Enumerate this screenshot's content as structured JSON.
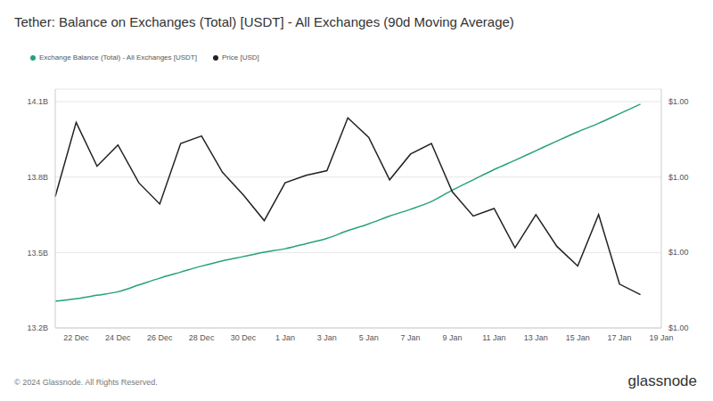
{
  "chart_data": {
    "type": "line",
    "title": "Tether: Balance on Exchanges (Total) [USDT] - All Exchanges (90d Moving Average)",
    "categories": [
      null,
      "22 Dec",
      null,
      "24 Dec",
      null,
      "26 Dec",
      null,
      "28 Dec",
      null,
      "30 Dec",
      null,
      "1 Jan",
      null,
      "3 Jan",
      null,
      "5 Jan",
      null,
      "7 Jan",
      null,
      "9 Jan",
      null,
      "11 Jan",
      null,
      "13 Jan",
      null,
      "15 Jan",
      null,
      "17 Jan",
      null,
      "19 Jan"
    ],
    "series": [
      {
        "name": "Exchange Balance (Total) - All Exchanges [USDT]",
        "color": "#26a17b",
        "values": [
          13.306,
          13.316,
          13.33,
          13.344,
          13.371,
          13.398,
          13.422,
          13.446,
          13.467,
          13.484,
          13.501,
          13.515,
          13.535,
          13.556,
          13.587,
          13.614,
          13.645,
          13.672,
          13.703,
          13.748,
          13.789,
          13.83,
          13.867,
          13.905,
          13.943,
          13.98,
          14.014,
          14.052,
          14.09,
          null
        ]
      },
      {
        "name": "Price [USD]",
        "color": "#222222",
        "axis": "y2",
        "values": [
          0.99937,
          0.99986,
          0.99957,
          0.99971,
          0.99946,
          0.99932,
          0.99972,
          0.99977,
          0.99953,
          0.99938,
          0.99921,
          0.99946,
          0.99951,
          0.99954,
          0.99989,
          0.99976,
          0.99948,
          0.99965,
          0.99972,
          0.9994,
          0.99924,
          0.99929,
          0.99903,
          0.99925,
          0.99904,
          0.99891,
          0.99925,
          0.99879,
          0.99872,
          null
        ]
      }
    ],
    "ylim": [
      13.2,
      14.15
    ],
    "yticks": [
      {
        "value": 13.2,
        "label": "13.2B"
      },
      {
        "value": 13.5,
        "label": "13.5B"
      },
      {
        "value": 13.8,
        "label": "13.8B"
      },
      {
        "value": 14.1,
        "label": "14.1B"
      }
    ],
    "y2lim": [
      0.9985,
      1.00008
    ],
    "y2ticks": [
      {
        "value": 0.9985,
        "label": "$1.00"
      },
      {
        "value": 0.999,
        "label": "$1.00"
      },
      {
        "value": 0.9995,
        "label": "$1.00"
      },
      {
        "value": 1.0,
        "label": "$1.00"
      }
    ],
    "grid": true,
    "legend": "top-left",
    "footer": "© 2024 Glassnode. All Rights Reserved.",
    "logo": "glassnode"
  }
}
